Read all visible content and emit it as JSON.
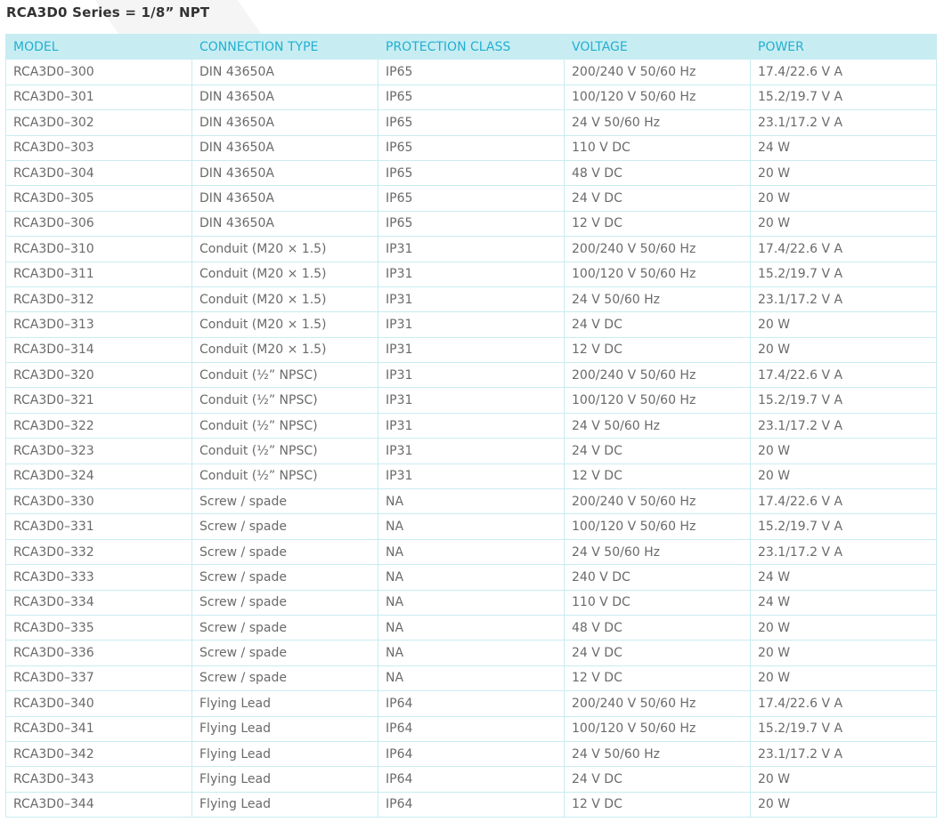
{
  "title": "RCA3D0 Series = 1/8” NPT",
  "colors": {
    "header_bg": "#c7edf3",
    "header_text": "#23afd0",
    "border": "#c9ecf1",
    "text": "#6a6a6a"
  },
  "columns": [
    "MODEL",
    "CONNECTION TYPE",
    "PROTECTION CLASS",
    "VOLTAGE",
    "POWER"
  ],
  "rows": [
    [
      "RCA3D0–300",
      "DIN 43650A",
      "IP65",
      "200/240 V 50/60 Hz",
      "17.4/22.6 V A"
    ],
    [
      "RCA3D0–301",
      "DIN 43650A",
      "IP65",
      "100/120 V 50/60 Hz",
      "15.2/19.7 V A"
    ],
    [
      "RCA3D0–302",
      "DIN 43650A",
      "IP65",
      "24 V 50/60 Hz",
      "23.1/17.2 V A"
    ],
    [
      "RCA3D0–303",
      "DIN 43650A",
      "IP65",
      "110 V DC",
      "24 W"
    ],
    [
      "RCA3D0–304",
      "DIN 43650A",
      "IP65",
      "48 V DC",
      "20 W"
    ],
    [
      "RCA3D0–305",
      "DIN 43650A",
      "IP65",
      "24 V DC",
      "20 W"
    ],
    [
      "RCA3D0–306",
      "DIN 43650A",
      "IP65",
      "12 V DC",
      "20 W"
    ],
    [
      "RCA3D0–310",
      "Conduit (M20 × 1.5)",
      "IP31",
      "200/240 V 50/60 Hz",
      "17.4/22.6 V A"
    ],
    [
      "RCA3D0–311",
      "Conduit (M20 × 1.5)",
      "IP31",
      "100/120 V 50/60 Hz",
      "15.2/19.7 V A"
    ],
    [
      "RCA3D0–312",
      "Conduit (M20 × 1.5)",
      "IP31",
      "24 V 50/60 Hz",
      "23.1/17.2 V A"
    ],
    [
      "RCA3D0–313",
      "Conduit (M20 × 1.5)",
      "IP31",
      "24 V DC",
      "20 W"
    ],
    [
      "RCA3D0–314",
      "Conduit (M20 × 1.5)",
      "IP31",
      "12 V DC",
      "20 W"
    ],
    [
      "RCA3D0–320",
      "Conduit (½” NPSC)",
      "IP31",
      "200/240 V 50/60 Hz",
      "17.4/22.6 V A"
    ],
    [
      "RCA3D0–321",
      "Conduit (½” NPSC)",
      "IP31",
      "100/120 V 50/60 Hz",
      "15.2/19.7 V A"
    ],
    [
      "RCA3D0–322",
      "Conduit (½” NPSC)",
      "IP31",
      "24 V 50/60 Hz",
      "23.1/17.2 V A"
    ],
    [
      "RCA3D0–323",
      "Conduit (½” NPSC)",
      "IP31",
      "24 V DC",
      "20 W"
    ],
    [
      "RCA3D0–324",
      "Conduit (½” NPSC)",
      "IP31",
      "12 V DC",
      "20 W"
    ],
    [
      "RCA3D0–330",
      "Screw / spade",
      "NA",
      "200/240 V 50/60 Hz",
      "17.4/22.6 V A"
    ],
    [
      "RCA3D0–331",
      "Screw / spade",
      "NA",
      "100/120 V 50/60 Hz",
      "15.2/19.7 V A"
    ],
    [
      "RCA3D0–332",
      "Screw / spade",
      "NA",
      "24 V 50/60 Hz",
      "23.1/17.2 V A"
    ],
    [
      "RCA3D0–333",
      "Screw / spade",
      "NA",
      "240 V DC",
      "24 W"
    ],
    [
      "RCA3D0–334",
      "Screw / spade",
      "NA",
      "110 V DC",
      "24 W"
    ],
    [
      "RCA3D0–335",
      "Screw / spade",
      "NA",
      "48 V DC",
      "20 W"
    ],
    [
      "RCA3D0–336",
      "Screw / spade",
      "NA",
      "24 V DC",
      "20 W"
    ],
    [
      "RCA3D0–337",
      "Screw / spade",
      "NA",
      "12 V DC",
      "20 W"
    ],
    [
      "RCA3D0–340",
      "Flying Lead",
      "IP64",
      "200/240 V 50/60 Hz",
      "17.4/22.6 V A"
    ],
    [
      "RCA3D0–341",
      "Flying Lead",
      "IP64",
      "100/120 V 50/60 Hz",
      "15.2/19.7 V A"
    ],
    [
      "RCA3D0–342",
      "Flying Lead",
      "IP64",
      "24 V 50/60 Hz",
      "23.1/17.2 V A"
    ],
    [
      "RCA3D0–343",
      "Flying Lead",
      "IP64",
      "24 V DC",
      "20 W"
    ],
    [
      "RCA3D0–344",
      "Flying Lead",
      "IP64",
      "12 V DC",
      "20 W"
    ]
  ]
}
